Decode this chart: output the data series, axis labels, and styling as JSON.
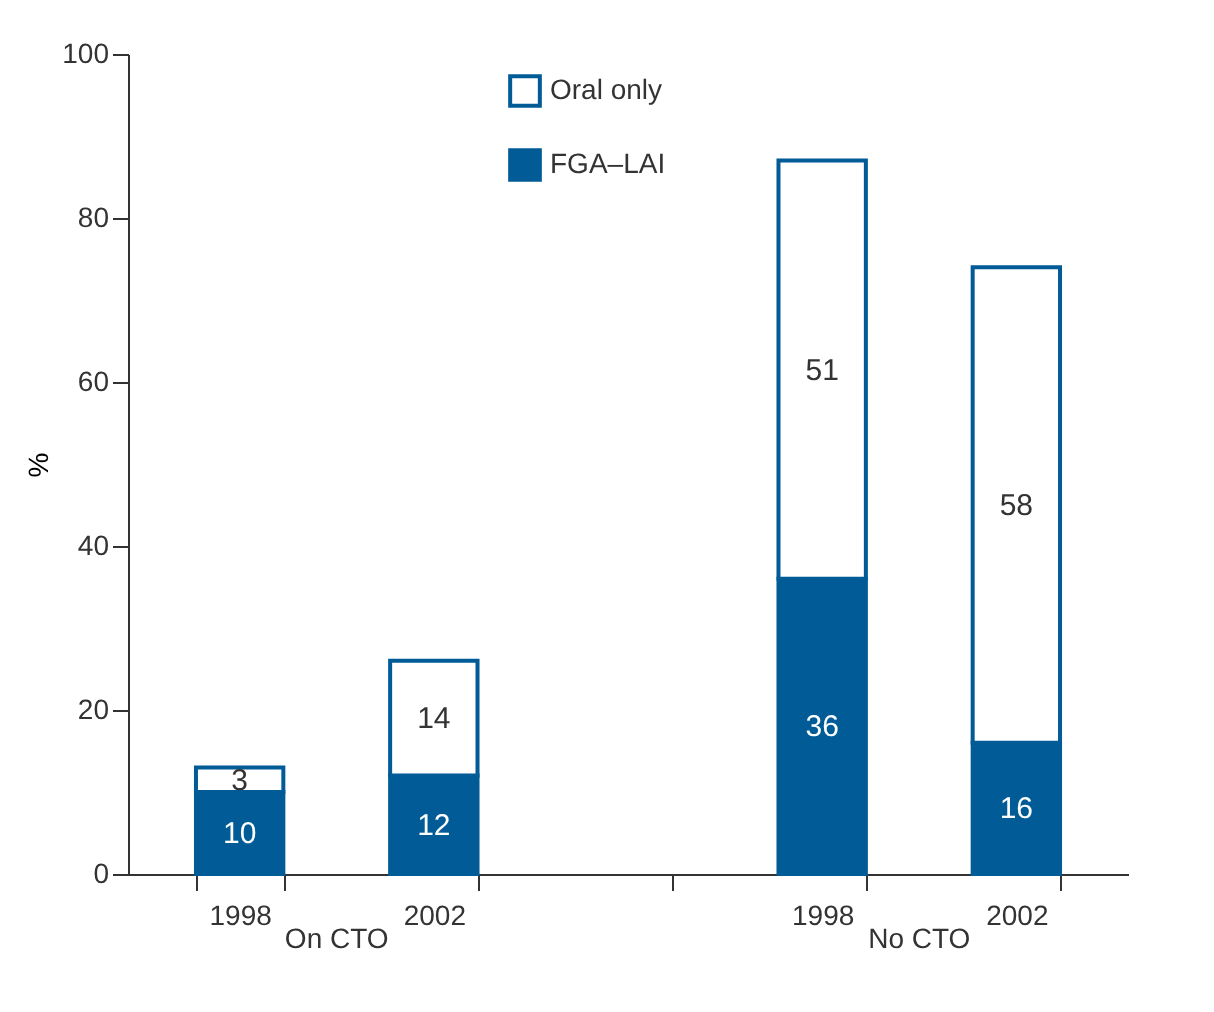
{
  "chart_data": {
    "type": "bar",
    "stacked": true,
    "categories": [
      "1998",
      "2002",
      null,
      "1998",
      "2002"
    ],
    "series": [
      {
        "name": "FGA–LAI",
        "color": "#005b96",
        "values": [
          10,
          12,
          null,
          36,
          16
        ]
      },
      {
        "name": "Oral only",
        "color": "#ffffff",
        "values": [
          3,
          14,
          null,
          51,
          58
        ]
      }
    ],
    "ylabel": "%",
    "ylim": [
      0,
      100
    ],
    "yticks": [
      0,
      20,
      40,
      60,
      80,
      100
    ],
    "grid": false,
    "legend": "top",
    "data_labels": true,
    "annotations": [
      "On CTO",
      "No CTO"
    ]
  }
}
